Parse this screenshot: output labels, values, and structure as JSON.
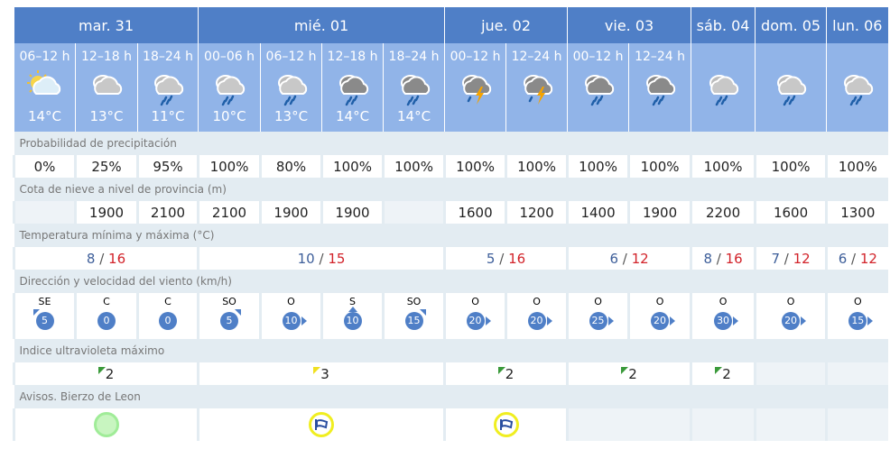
{
  "days": [
    {
      "label": "mar. 31",
      "span": 3
    },
    {
      "label": "mié. 01",
      "span": 4
    },
    {
      "label": "jue. 02",
      "span": 2
    },
    {
      "label": "vie. 03",
      "span": 2
    },
    {
      "label": "sáb. 04",
      "span": 1
    },
    {
      "label": "dom. 05",
      "span": 1
    },
    {
      "label": "lun. 06",
      "span": 1
    }
  ],
  "periods": [
    {
      "label": "06–12 h",
      "icon": "sun-cloud",
      "temp": "14°C"
    },
    {
      "label": "12–18 h",
      "icon": "cloud",
      "temp": "13°C"
    },
    {
      "label": "18–24 h",
      "icon": "rain",
      "temp": "11°C"
    },
    {
      "label": "00–06 h",
      "icon": "rain",
      "temp": "10°C"
    },
    {
      "label": "06–12 h",
      "icon": "rain",
      "temp": "13°C"
    },
    {
      "label": "12–18 h",
      "icon": "dark-rain",
      "temp": "14°C"
    },
    {
      "label": "18–24 h",
      "icon": "dark-rain",
      "temp": "14°C"
    },
    {
      "label": "00–12 h",
      "icon": "storm",
      "temp": ""
    },
    {
      "label": "12–24 h",
      "icon": "storm",
      "temp": ""
    },
    {
      "label": "00–12 h",
      "icon": "dark-rain",
      "temp": ""
    },
    {
      "label": "12–24 h",
      "icon": "dark-rain",
      "temp": ""
    },
    {
      "label": "",
      "icon": "rain",
      "temp": ""
    },
    {
      "label": "",
      "icon": "rain",
      "temp": ""
    },
    {
      "label": "",
      "icon": "rain",
      "temp": ""
    }
  ],
  "precip": {
    "label": "Probabilidad de precipitación",
    "values": [
      "0%",
      "25%",
      "95%",
      "100%",
      "80%",
      "100%",
      "100%",
      "100%",
      "100%",
      "100%",
      "100%",
      "100%",
      "100%",
      "100%"
    ]
  },
  "snow": {
    "label": "Cota de nieve a nivel de provincia (m)",
    "values": [
      "",
      "1900",
      "2100",
      "2100",
      "1900",
      "1900",
      "",
      "1600",
      "1200",
      "1400",
      "1900",
      "2200",
      "1600",
      "1300"
    ]
  },
  "temps": {
    "label": "Temperatura mínima y máxima (°C)",
    "values": [
      {
        "min": "8",
        "max": "16"
      },
      {
        "min": "10",
        "max": "15"
      },
      {
        "min": "5",
        "max": "16"
      },
      {
        "min": "6",
        "max": "12"
      },
      {
        "min": "8",
        "max": "16"
      },
      {
        "min": "7",
        "max": "12"
      },
      {
        "min": "6",
        "max": "12"
      }
    ],
    "sep": "/"
  },
  "wind": {
    "label": "Dirección y velocidad del viento (km/h)",
    "values": [
      {
        "dir": "SE",
        "speed": "5"
      },
      {
        "dir": "C",
        "speed": "0"
      },
      {
        "dir": "C",
        "speed": "0"
      },
      {
        "dir": "SO",
        "speed": "5"
      },
      {
        "dir": "O",
        "speed": "10"
      },
      {
        "dir": "S",
        "speed": "10"
      },
      {
        "dir": "SO",
        "speed": "15"
      },
      {
        "dir": "O",
        "speed": "20"
      },
      {
        "dir": "O",
        "speed": "20"
      },
      {
        "dir": "O",
        "speed": "25"
      },
      {
        "dir": "O",
        "speed": "20"
      },
      {
        "dir": "O",
        "speed": "30"
      },
      {
        "dir": "O",
        "speed": "20"
      },
      {
        "dir": "O",
        "speed": "15"
      }
    ]
  },
  "uv": {
    "label": "Indice ultravioleta máximo",
    "values": [
      {
        "value": "2",
        "color": "#3a9a3a",
        "span": 3
      },
      {
        "value": "3",
        "color": "#f0e020",
        "span": 4
      },
      {
        "value": "2",
        "color": "#3a9a3a",
        "span": 2
      },
      {
        "value": "2",
        "color": "#3a9a3a",
        "span": 2
      },
      {
        "value": "2",
        "color": "#3a9a3a",
        "span": 1
      },
      {
        "value": "",
        "span": 1
      },
      {
        "value": "",
        "span": 1
      }
    ]
  },
  "avisos": {
    "label": "Avisos. Bierzo de Leon",
    "values": [
      {
        "level": "green",
        "icon": "none",
        "span": 3
      },
      {
        "level": "yellow",
        "icon": "wind-icon",
        "span": 4
      },
      {
        "level": "yellow",
        "icon": "wind-icon",
        "span": 2
      },
      {
        "level": "",
        "span": 2
      },
      {
        "level": "",
        "span": 1
      },
      {
        "level": "",
        "span": 1
      },
      {
        "level": "",
        "span": 1
      }
    ]
  },
  "colors": {
    "header": "#4f7fc7",
    "subheader": "#91b4e8",
    "green": "#a8f0a0",
    "yellow": "#f0f020"
  }
}
